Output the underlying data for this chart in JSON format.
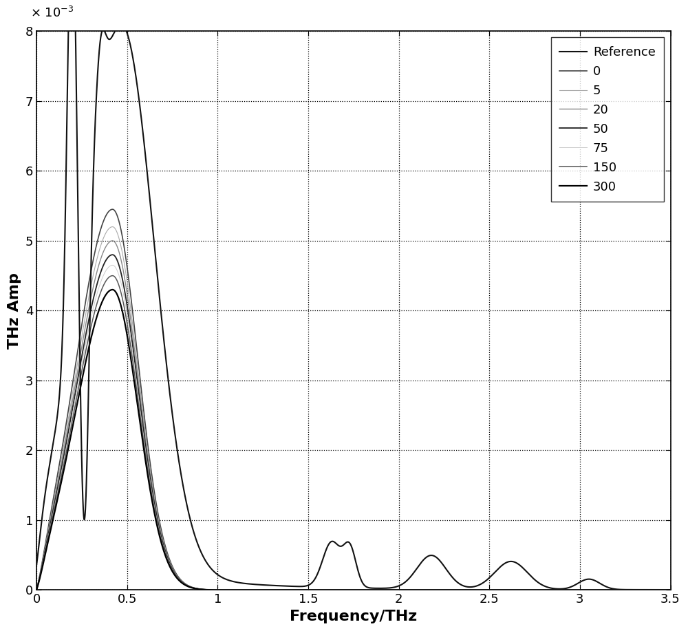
{
  "xlabel": "Frequency/THz",
  "ylabel": "THz Amp",
  "xlim": [
    0,
    3.5
  ],
  "ylim": [
    0,
    0.008
  ],
  "ytick_vals": [
    0,
    0.001,
    0.002,
    0.003,
    0.004,
    0.005,
    0.006,
    0.007,
    0.008
  ],
  "ytick_labels": [
    "0",
    "1",
    "2",
    "3",
    "4",
    "5",
    "6",
    "7",
    "8"
  ],
  "xtick_vals": [
    0,
    0.5,
    1.0,
    1.5,
    2.0,
    2.5,
    3.0,
    3.5
  ],
  "xtick_labels": [
    "0",
    "0.5",
    "1",
    "1.5",
    "2",
    "2.5",
    "3",
    "3.5"
  ],
  "legend_labels": [
    "Reference",
    "0",
    "5",
    "20",
    "50",
    "75",
    "150",
    "300"
  ],
  "legend_colors": [
    "#111111",
    "#444444",
    "#aaaaaa",
    "#888888",
    "#222222",
    "#cccccc",
    "#555555",
    "#000000"
  ],
  "legend_lwidths": [
    1.5,
    1.2,
    0.8,
    1.0,
    1.3,
    0.7,
    1.1,
    1.6
  ],
  "sample_peaks": [
    0.00545,
    0.0052,
    0.005,
    0.0048,
    0.00465,
    0.0045,
    0.0043
  ],
  "freq_n": 5000
}
